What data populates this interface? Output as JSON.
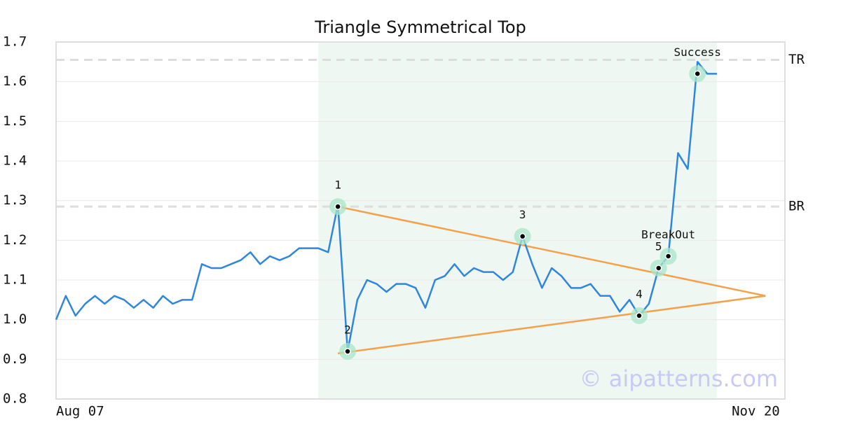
{
  "chart_data": {
    "type": "line",
    "title": "Triangle Symmetrical Top",
    "categories": [
      "Aug 07",
      null,
      null,
      null,
      null,
      null,
      null,
      null,
      null,
      null,
      null,
      null,
      null,
      null,
      null,
      null,
      null,
      null,
      null,
      null,
      null,
      null,
      null,
      null,
      null,
      null,
      null,
      null,
      null,
      null,
      null,
      null,
      null,
      null,
      null,
      null,
      null,
      null,
      null,
      null,
      null,
      null,
      null,
      null,
      null,
      null,
      null,
      null,
      null,
      null,
      null,
      null,
      null,
      null,
      null,
      null,
      null,
      null,
      null,
      null,
      null,
      null,
      null,
      null,
      null,
      null,
      null,
      null,
      null,
      null,
      null,
      null,
      "Nov 20"
    ],
    "values": [
      1.0,
      1.06,
      1.01,
      1.04,
      1.06,
      1.04,
      1.06,
      1.05,
      1.03,
      1.05,
      1.03,
      1.06,
      1.04,
      1.05,
      1.05,
      1.14,
      1.13,
      1.13,
      1.14,
      1.15,
      1.17,
      1.14,
      1.16,
      1.15,
      1.16,
      1.18,
      1.18,
      1.18,
      1.17,
      1.29,
      0.92,
      1.05,
      1.1,
      1.09,
      1.07,
      1.09,
      1.09,
      1.08,
      1.03,
      1.1,
      1.11,
      1.14,
      1.11,
      1.13,
      1.12,
      1.12,
      1.1,
      1.12,
      1.21,
      1.14,
      1.08,
      1.13,
      1.11,
      1.08,
      1.08,
      1.09,
      1.06,
      1.06,
      1.02,
      1.05,
      1.01,
      1.04,
      1.13,
      1.16,
      1.42,
      1.38,
      1.65,
      1.62,
      1.62,
      null,
      null,
      null,
      null
    ],
    "color": "#2e86de",
    "xlim": [
      0,
      75
    ],
    "ylim": [
      0.8,
      1.7
    ],
    "yticks": [
      0.8,
      0.9,
      {
        "value": 1,
        "label": "1.0"
      },
      1.1,
      1.2,
      1.3,
      1.4,
      1.5,
      1.6,
      1.7
    ],
    "grid": true,
    "pattern_range": [
      27,
      68
    ],
    "levels": [
      {
        "label": "TR",
        "value": 1.655
      },
      {
        "label": "BR",
        "value": 1.285
      }
    ],
    "triangle": [
      {
        "x": [
          29,
          73
        ],
        "values": [
          1.285,
          1.06
        ]
      },
      {
        "x": [
          29,
          73
        ],
        "values": [
          0.915,
          1.06
        ]
      }
    ],
    "triangle_color": "#f5a04a",
    "points": [
      {
        "label": "1",
        "x": 29,
        "value": 1.285
      },
      {
        "label": "2",
        "x": 30,
        "value": 0.92
      },
      {
        "label": "3",
        "x": 48,
        "value": 1.21
      },
      {
        "label": "4",
        "x": 60,
        "value": 1.01
      },
      {
        "label": "5",
        "x": 62,
        "value": 1.13
      },
      {
        "label": "BreakOut",
        "x": 63,
        "value": 1.16
      },
      {
        "label": "Success",
        "x": 66,
        "value": 1.62
      }
    ],
    "watermark": "© aipatterns.com"
  }
}
